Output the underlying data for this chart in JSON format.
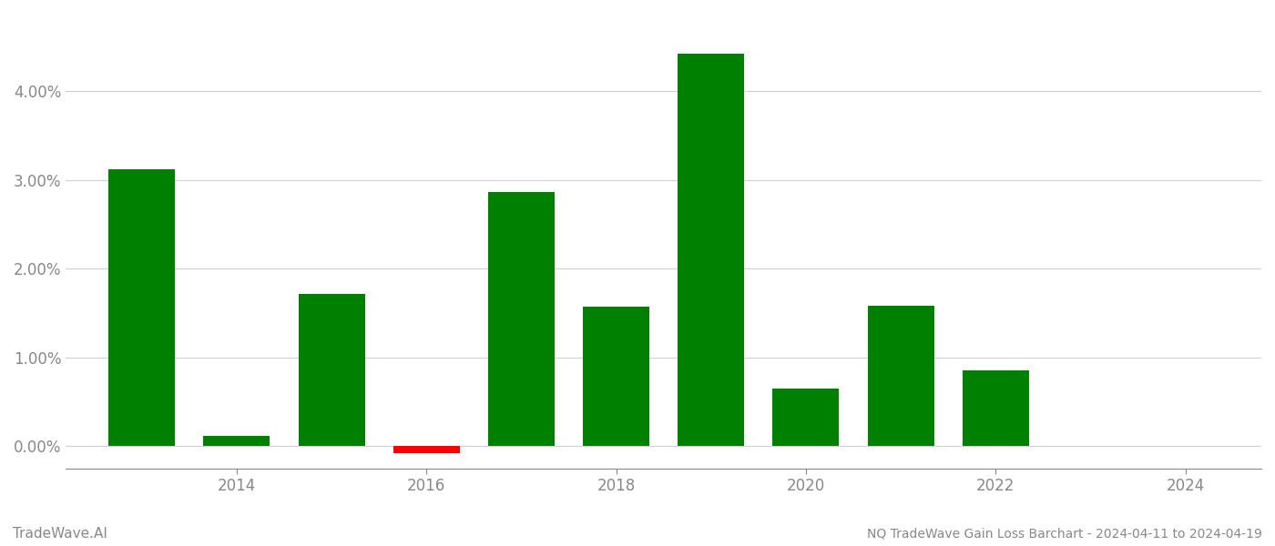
{
  "bar_years": [
    2013,
    2014,
    2015,
    2016,
    2017,
    2018,
    2019,
    2020,
    2021,
    2022,
    2023
  ],
  "bar_values": [
    3.12,
    0.11,
    1.71,
    -0.08,
    2.86,
    1.57,
    4.42,
    0.65,
    1.58,
    0.85,
    0.0
  ],
  "bar_colors": [
    "#008000",
    "#008000",
    "#008000",
    "#ff0000",
    "#008000",
    "#008000",
    "#008000",
    "#008000",
    "#008000",
    "#008000",
    "#008000"
  ],
  "title": "NQ TradeWave Gain Loss Barchart - 2024-04-11 to 2024-04-19",
  "watermark": "TradeWave.AI",
  "xlim": [
    2012.2,
    2024.8
  ],
  "ylim": [
    -0.25,
    4.75
  ],
  "yticks": [
    0.0,
    1.0,
    2.0,
    3.0,
    4.0
  ],
  "xticks": [
    2014,
    2016,
    2018,
    2020,
    2022,
    2024
  ],
  "background_color": "#ffffff",
  "grid_color": "#d0d0d0",
  "axis_color": "#888888",
  "tick_color": "#888888",
  "title_color": "#888888",
  "watermark_color": "#888888",
  "bar_width": 0.7,
  "title_fontsize": 10,
  "watermark_fontsize": 11,
  "tick_fontsize": 12
}
